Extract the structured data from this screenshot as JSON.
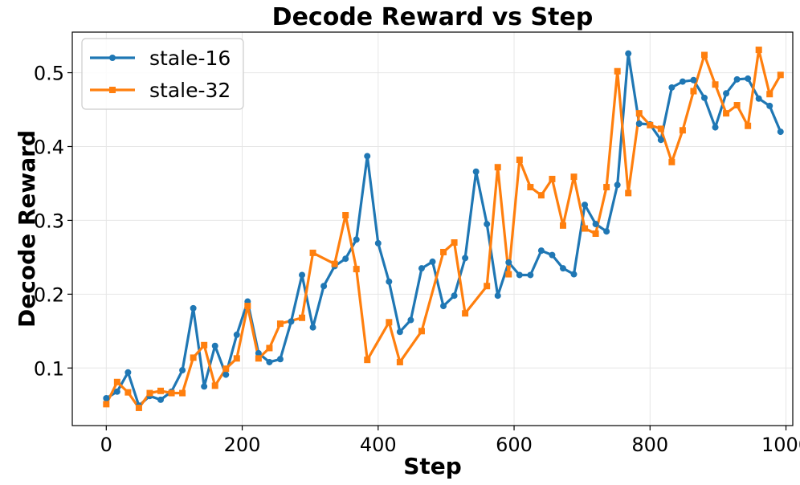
{
  "chart_data": {
    "type": "line",
    "title": "Decode Reward vs Step",
    "xlabel": "Step",
    "ylabel": "Decode Reward",
    "xlim": [
      -50,
      1010
    ],
    "ylim": [
      0.022,
      0.555
    ],
    "xticks": [
      0,
      200,
      400,
      600,
      800,
      1000
    ],
    "yticks": [
      0.1,
      0.2,
      0.3,
      0.4,
      0.5
    ],
    "xtick_labels": [
      "0",
      "200",
      "400",
      "600",
      "800",
      "1000"
    ],
    "ytick_labels": [
      "0.1",
      "0.2",
      "0.3",
      "0.4",
      "0.5"
    ],
    "grid": true,
    "legend_position": "upper-left",
    "series": [
      {
        "name": "stale-16",
        "color": "#1f77b4",
        "marker": "circle",
        "x": [
          0,
          16,
          32,
          48,
          64,
          80,
          96,
          112,
          128,
          144,
          160,
          176,
          192,
          208,
          224,
          240,
          256,
          272,
          288,
          304,
          320,
          336,
          352,
          368,
          384,
          400,
          416,
          432,
          448,
          464,
          480,
          496,
          512,
          528,
          544,
          560,
          576,
          592,
          608,
          624,
          640,
          656,
          672,
          688,
          704,
          720,
          736,
          752,
          768,
          784,
          800,
          816,
          832,
          848,
          864,
          880,
          896,
          912,
          928,
          944,
          960,
          976,
          992
        ],
        "y": [
          0.059,
          0.068,
          0.094,
          0.049,
          0.062,
          0.057,
          0.068,
          0.097,
          0.181,
          0.075,
          0.13,
          0.091,
          0.145,
          0.19,
          0.12,
          0.108,
          0.112,
          0.163,
          0.226,
          0.155,
          0.211,
          0.238,
          0.248,
          0.274,
          0.387,
          0.269,
          0.217,
          0.149,
          0.165,
          0.235,
          0.244,
          0.184,
          0.198,
          0.249,
          0.366,
          0.295,
          0.198,
          0.243,
          0.226,
          0.226,
          0.259,
          0.253,
          0.235,
          0.227,
          0.321,
          0.295,
          0.285,
          0.348,
          0.526,
          0.431,
          0.43,
          0.409,
          0.48,
          0.488,
          0.49,
          0.466,
          0.426,
          0.472,
          0.491,
          0.492,
          0.465,
          0.455,
          0.42
        ]
      },
      {
        "name": "stale-32",
        "color": "#ff7f0e",
        "marker": "square",
        "x": [
          0,
          16,
          32,
          48,
          64,
          80,
          96,
          112,
          128,
          144,
          160,
          176,
          192,
          208,
          224,
          240,
          256,
          288,
          304,
          336,
          352,
          368,
          384,
          416,
          432,
          464,
          496,
          512,
          528,
          560,
          576,
          592,
          608,
          624,
          640,
          656,
          672,
          688,
          704,
          720,
          736,
          752,
          768,
          784,
          800,
          816,
          832,
          848,
          864,
          880,
          896,
          912,
          928,
          944,
          960,
          976,
          992
        ],
        "y": [
          0.051,
          0.081,
          0.067,
          0.046,
          0.066,
          0.069,
          0.066,
          0.066,
          0.114,
          0.131,
          0.076,
          0.099,
          0.113,
          0.184,
          0.113,
          0.127,
          0.16,
          0.168,
          0.256,
          0.241,
          0.307,
          0.234,
          0.111,
          0.162,
          0.108,
          0.15,
          0.257,
          0.27,
          0.174,
          0.211,
          0.372,
          0.227,
          0.382,
          0.345,
          0.334,
          0.356,
          0.293,
          0.359,
          0.289,
          0.282,
          0.345,
          0.502,
          0.337,
          0.445,
          0.429,
          0.424,
          0.379,
          0.422,
          0.475,
          0.524,
          0.484,
          0.445,
          0.456,
          0.428,
          0.531,
          0.471,
          0.497
        ]
      }
    ]
  }
}
